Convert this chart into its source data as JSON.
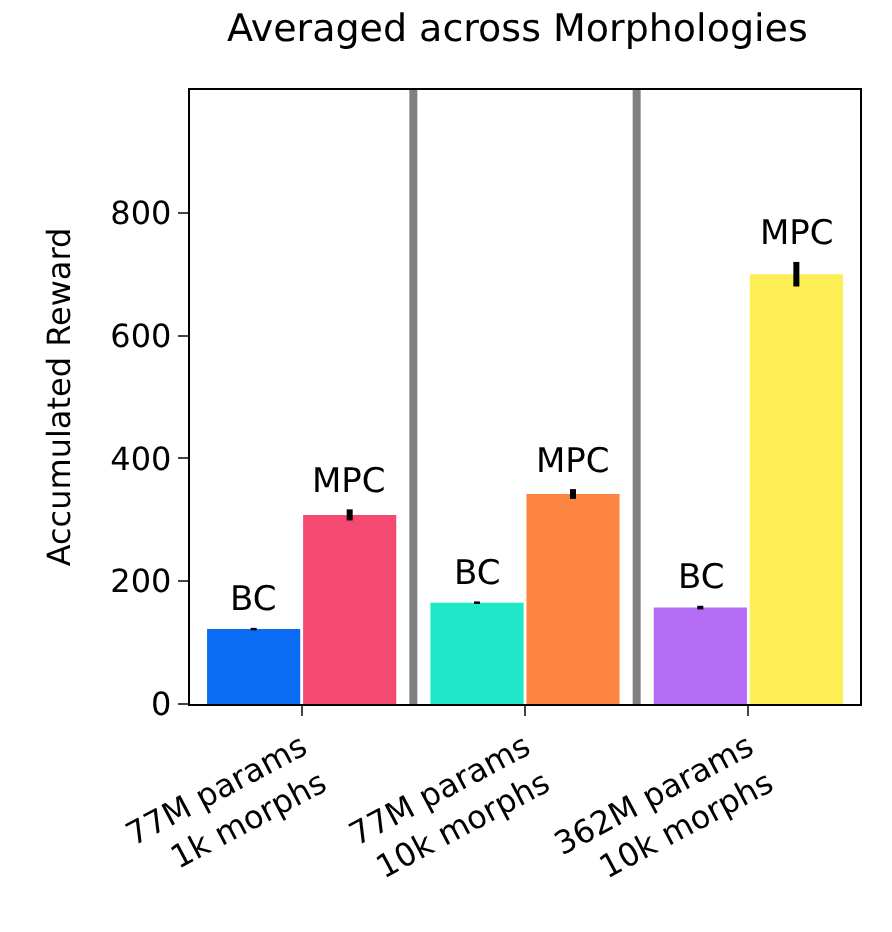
{
  "chart_data": {
    "type": "bar",
    "title": "Averaged across Morphologies",
    "ylabel": "Accumulated Reward",
    "categories": [
      "77M params\n1k morphs",
      "77M params\n10k morphs",
      "362M params\n10k morphs"
    ],
    "series": [
      {
        "name": "BC",
        "colors": [
          "#0a6cf5",
          "#1ee8c8",
          "#b46cf5"
        ],
        "values": [
          122,
          165,
          157
        ],
        "errors": [
          2,
          2,
          3
        ]
      },
      {
        "name": "MPC",
        "colors": [
          "#f44a72",
          "#fb8541",
          "#fdee55"
        ],
        "values": [
          308,
          342,
          700
        ],
        "errors": [
          9,
          8,
          20
        ]
      }
    ],
    "ylim": [
      0,
      1000
    ],
    "yticks": [
      0,
      200,
      400,
      600,
      800
    ],
    "legend": false
  }
}
